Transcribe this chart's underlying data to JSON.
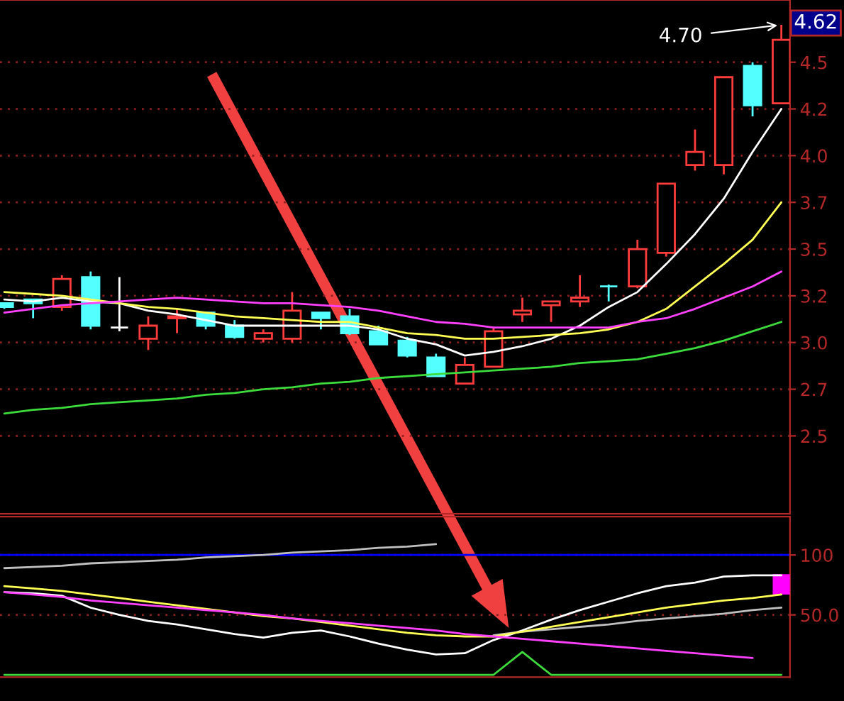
{
  "chart_data": [
    {
      "type": "candlestick",
      "categories": [
        null,
        null,
        null,
        null,
        null,
        null,
        null,
        null,
        null,
        null,
        null,
        null,
        null,
        null,
        null,
        null,
        null,
        null,
        null,
        null,
        null,
        null,
        null,
        null,
        null,
        null,
        null,
        null
      ],
      "ohlc": [
        [
          3.21,
          3.21,
          3.18,
          3.19
        ],
        [
          3.23,
          3.23,
          3.13,
          3.21
        ],
        [
          3.19,
          3.36,
          3.17,
          3.34
        ],
        [
          3.35,
          3.38,
          3.07,
          3.09
        ],
        [
          3.08,
          3.35,
          3.06,
          3.08
        ],
        [
          3.02,
          3.14,
          2.96,
          3.09
        ],
        [
          3.13,
          3.18,
          3.05,
          3.14
        ],
        [
          3.16,
          3.16,
          3.07,
          3.09
        ],
        [
          3.09,
          3.12,
          3.02,
          3.03
        ],
        [
          3.02,
          3.07,
          3.0,
          3.05
        ],
        [
          3.02,
          3.27,
          3.0,
          3.17
        ],
        [
          3.16,
          3.16,
          3.07,
          3.13
        ],
        [
          3.14,
          3.18,
          3.04,
          3.05
        ],
        [
          3.06,
          3.09,
          2.99,
          2.99
        ],
        [
          3.01,
          3.03,
          2.92,
          2.93
        ],
        [
          2.92,
          2.94,
          2.82,
          2.82
        ],
        [
          2.78,
          2.92,
          2.78,
          2.88
        ],
        [
          2.87,
          3.08,
          2.87,
          3.06
        ],
        [
          3.15,
          3.24,
          3.11,
          3.17
        ],
        [
          3.2,
          3.22,
          3.11,
          3.22
        ],
        [
          3.22,
          3.36,
          3.19,
          3.24
        ],
        [
          3.3,
          3.31,
          3.22,
          3.3
        ],
        [
          3.3,
          3.55,
          3.29,
          3.5
        ],
        [
          3.48,
          3.85,
          3.46,
          3.85
        ],
        [
          3.95,
          4.14,
          3.92,
          4.02
        ],
        [
          3.95,
          4.42,
          3.9,
          4.42
        ],
        [
          4.48,
          4.5,
          4.21,
          4.27
        ],
        [
          4.28,
          4.7,
          4.28,
          4.62
        ]
      ],
      "colors": [
        "#54ffff",
        "#54ffff",
        "#ff3c3c",
        "#54ffff",
        "#ffffff",
        "#ff3c3c",
        "#ff3c3c",
        "#54ffff",
        "#54ffff",
        "#ff3c3c",
        "#ff3c3c",
        "#54ffff",
        "#54ffff",
        "#54ffff",
        "#54ffff",
        "#54ffff",
        "#ff3c3c",
        "#ff3c3c",
        "#ff3c3c",
        "#ff3c3c",
        "#ff3c3c",
        "#54ffff",
        "#ff3c3c",
        "#ff3c3c",
        "#ff3c3c",
        "#ff3c3c",
        "#54ffff",
        "#ff3c3c"
      ],
      "series": [
        {
          "type": "line",
          "color": "#ffffff",
          "values": [
            3.23,
            3.22,
            3.24,
            3.22,
            3.21,
            3.17,
            3.15,
            3.12,
            3.09,
            3.09,
            3.09,
            3.09,
            3.09,
            3.07,
            3.02,
            2.99,
            2.93,
            2.95,
            2.98,
            3.02,
            3.09,
            3.19,
            3.27,
            3.42,
            3.58,
            3.77,
            4.02,
            4.25
          ]
        },
        {
          "type": "line",
          "color": "#ffff54",
          "values": [
            3.27,
            3.26,
            3.25,
            3.23,
            3.21,
            3.19,
            3.18,
            3.16,
            3.14,
            3.13,
            3.12,
            3.11,
            3.11,
            3.08,
            3.05,
            3.04,
            3.02,
            3.02,
            3.03,
            3.04,
            3.05,
            3.07,
            3.11,
            3.18,
            3.3,
            3.42,
            3.55,
            3.75
          ]
        },
        {
          "type": "line",
          "color": "#ff40ff",
          "values": [
            3.16,
            3.18,
            3.2,
            3.21,
            3.22,
            3.23,
            3.24,
            3.23,
            3.22,
            3.21,
            3.21,
            3.2,
            3.19,
            3.17,
            3.14,
            3.11,
            3.1,
            3.08,
            3.08,
            3.08,
            3.08,
            3.08,
            3.11,
            3.13,
            3.18,
            3.24,
            3.3,
            3.38
          ]
        },
        {
          "type": "line",
          "color": "#3cdc3c",
          "values": [
            2.62,
            2.64,
            2.65,
            2.67,
            2.68,
            2.69,
            2.7,
            2.72,
            2.73,
            2.75,
            2.76,
            2.78,
            2.79,
            2.81,
            2.82,
            2.83,
            2.84,
            2.85,
            2.86,
            2.87,
            2.89,
            2.9,
            2.91,
            2.94,
            2.97,
            3.01,
            3.06,
            3.11
          ]
        }
      ],
      "ylim": [
        2.083,
        4.833
      ],
      "yticks": [
        {
          "value": 2.5,
          "label": "2.5"
        },
        {
          "value": 2.75,
          "label": "2.7"
        },
        {
          "value": 3.0,
          "label": "3.0"
        },
        {
          "value": 3.25,
          "label": "3.2"
        },
        {
          "value": 3.5,
          "label": "3.5"
        },
        {
          "value": 3.75,
          "label": "3.7"
        },
        {
          "value": 4.0,
          "label": "4.0"
        },
        {
          "value": 4.25,
          "label": "4.2"
        },
        {
          "value": 4.5,
          "label": "4.5"
        }
      ],
      "grid": "y",
      "tick_labels": "y",
      "annotations": [
        "4.70",
        "4.62"
      ]
    },
    {
      "type": "line",
      "categories": [
        null,
        null,
        null,
        null,
        null,
        null,
        null,
        null,
        null,
        null,
        null,
        null,
        null,
        null,
        null,
        null,
        null,
        null,
        null,
        null,
        null,
        null,
        null,
        null,
        null,
        null,
        null,
        null
      ],
      "series": [
        {
          "color": "#c0c0c0",
          "values": [
            89,
            90,
            91,
            93,
            94,
            95,
            96,
            98,
            99,
            100,
            102,
            103,
            104,
            106,
            107,
            109,
            null,
            33,
            36,
            38,
            40,
            42,
            45,
            47,
            49,
            51,
            54,
            56
          ]
        },
        {
          "color": "#ffffff",
          "values": [
            69,
            68,
            66,
            56,
            50,
            45,
            42,
            38,
            34,
            31,
            35,
            37,
            32,
            26,
            21,
            17,
            18,
            29,
            37,
            46,
            54,
            61,
            68,
            74,
            77,
            82,
            83,
            83
          ]
        },
        {
          "color": "#ffff54",
          "values": [
            74,
            72,
            70,
            67,
            64,
            61,
            58,
            55,
            52,
            49,
            47,
            44,
            41,
            38,
            35,
            33,
            32,
            32,
            36,
            40,
            44,
            48,
            52,
            56,
            59,
            62,
            64,
            67
          ]
        },
        {
          "color": "#ff40ff",
          "values": [
            69,
            67,
            65,
            62,
            60,
            58,
            56,
            54,
            52,
            50,
            47,
            45,
            43,
            41,
            39,
            37,
            34,
            32,
            30,
            28,
            26,
            24,
            22,
            20,
            18,
            16,
            14,
            null
          ]
        },
        {
          "color": "#3cdc3c",
          "values": [
            0,
            0,
            0,
            0,
            0,
            0,
            0,
            0,
            0,
            0,
            0,
            0,
            0,
            0,
            0,
            0,
            0,
            0,
            19,
            0,
            0,
            0,
            0,
            0,
            0,
            0,
            0,
            0
          ]
        },
        {
          "type": "bar",
          "color": "#ff00ff",
          "values": [
            null,
            null,
            null,
            null,
            null,
            null,
            null,
            null,
            null,
            null,
            null,
            null,
            null,
            null,
            null,
            null,
            null,
            null,
            null,
            null,
            null,
            null,
            null,
            null,
            null,
            null,
            null,
            17
          ],
          "base": [
            null,
            null,
            null,
            null,
            null,
            null,
            null,
            null,
            null,
            null,
            null,
            null,
            null,
            null,
            null,
            null,
            null,
            null,
            null,
            null,
            null,
            null,
            null,
            null,
            null,
            null,
            null,
            67
          ]
        }
      ],
      "ylim": [
        -2,
        132
      ],
      "yticks": [
        {
          "value": 50,
          "label": "50.0"
        },
        {
          "value": 100,
          "label": "100"
        }
      ],
      "ref_lines": [
        {
          "axis": "y",
          "value": 100,
          "color": "#0000ff"
        }
      ],
      "grid": "y",
      "tick_labels": "y"
    }
  ]
}
